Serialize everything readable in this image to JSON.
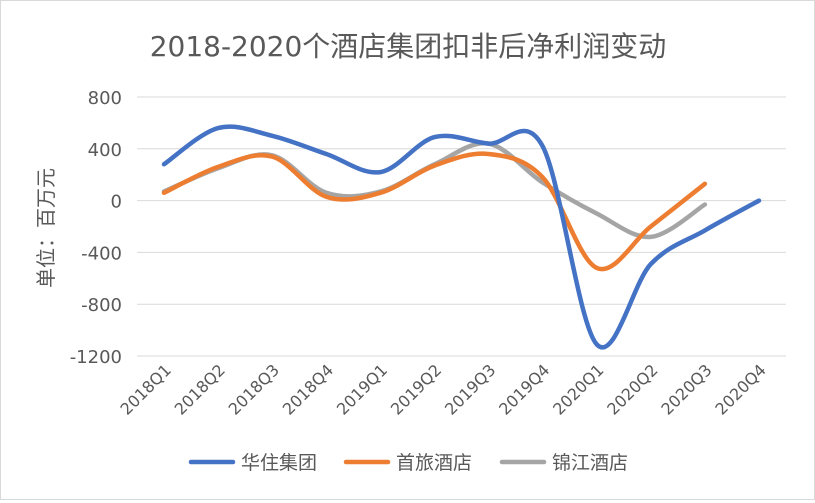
{
  "chart_data": {
    "type": "line",
    "title": "2018-2020个酒店集团扣非后净利润变动",
    "ylabel": "单位：百万元",
    "xlabel": "",
    "categories": [
      "2018Q1",
      "2018Q2",
      "2018Q3",
      "2018Q4",
      "2019Q1",
      "2019Q2",
      "2019Q3",
      "2019Q4",
      "2020Q1",
      "2020Q2",
      "2020Q3",
      "2020Q4"
    ],
    "yticks": [
      "800",
      "400",
      "0",
      "-400",
      "-800",
      "-1200"
    ],
    "ylim": [
      -1200,
      800
    ],
    "grid": true,
    "legend_position": "bottom",
    "series": [
      {
        "name": "华住集团",
        "color": "#4472c4",
        "values": [
          280,
          560,
          500,
          360,
          220,
          490,
          440,
          420,
          -1110,
          -490,
          -230,
          0
        ]
      },
      {
        "name": "首旅酒店",
        "color": "#ed7d31",
        "values": [
          60,
          260,
          340,
          30,
          60,
          270,
          360,
          180,
          -520,
          -200,
          130,
          null
        ]
      },
      {
        "name": "锦江酒店",
        "color": "#a5a5a5",
        "values": [
          70,
          250,
          350,
          60,
          70,
          280,
          440,
          140,
          -100,
          -280,
          -30,
          null
        ]
      }
    ]
  }
}
